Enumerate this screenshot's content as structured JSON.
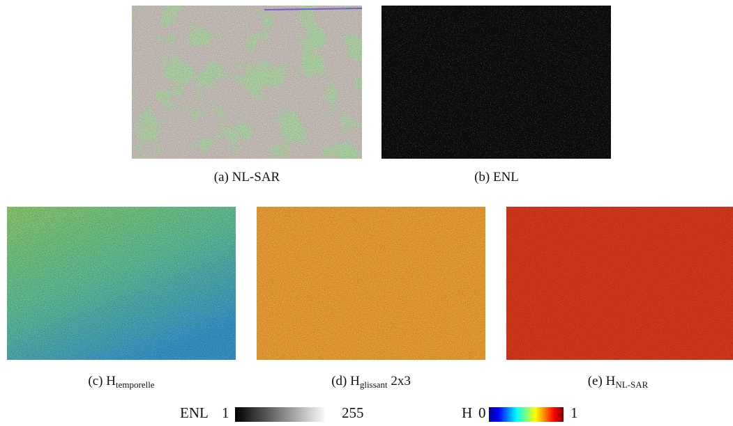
{
  "subfigures": [
    {
      "label": "(a)",
      "caption": "NL-SAR"
    },
    {
      "label": "(b)",
      "caption": "ENL"
    },
    {
      "label": "(c)",
      "caption": "H",
      "subscript": "temporelle"
    },
    {
      "label": "(d)",
      "caption": "H",
      "subscript": "glissant",
      "suffix": "2x3"
    },
    {
      "label": "(e)",
      "caption": "H",
      "subscript": "NL-SAR"
    }
  ],
  "colorbars": [
    {
      "label": "ENL",
      "min": 1,
      "max": 255
    },
    {
      "label": "H",
      "min": 0,
      "max": 1
    }
  ]
}
